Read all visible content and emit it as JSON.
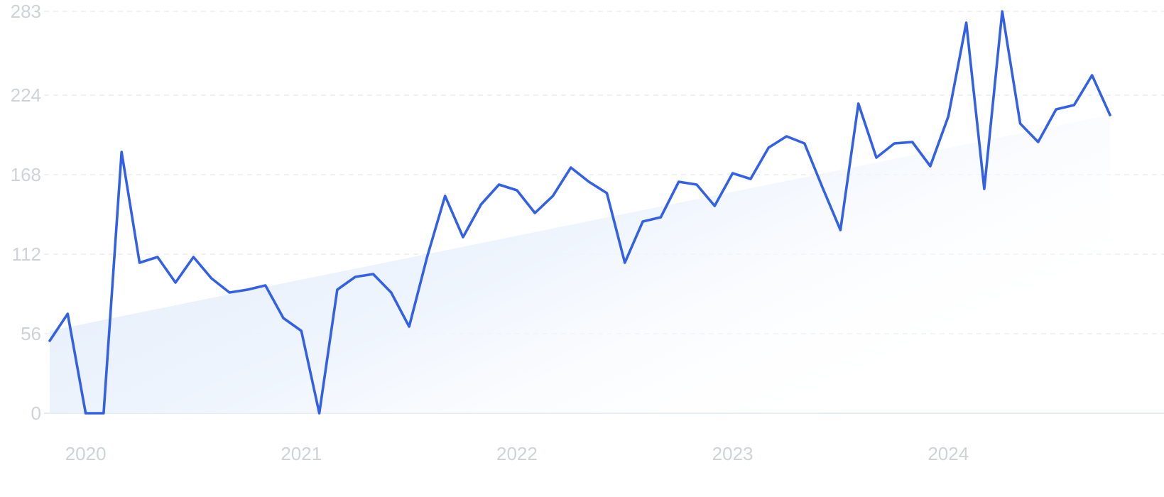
{
  "chart_data": {
    "type": "line",
    "title": "",
    "xlabel": "",
    "ylabel": "",
    "y_ticks": [
      "0",
      "56",
      "112",
      "168",
      "224",
      "283"
    ],
    "y_tick_values": [
      0,
      56,
      112,
      168,
      224,
      283
    ],
    "x_ticks": [
      "2020",
      "2021",
      "2022",
      "2023",
      "2024"
    ],
    "x_tick_values": [
      "2020-01",
      "2021-01",
      "2022-01",
      "2023-01",
      "2024-01"
    ],
    "ylim": [
      0,
      283
    ],
    "xlim": [
      "2019-11",
      "2024-10"
    ],
    "grid": "horizontal-dashed",
    "series": [
      {
        "x": [
          "2019-11",
          "2019-12",
          "2020-01",
          "2020-02",
          "2020-03",
          "2020-04",
          "2020-05",
          "2020-06",
          "2020-07",
          "2020-08",
          "2020-09",
          "2020-10",
          "2020-11",
          "2020-12",
          "2021-01",
          "2021-02",
          "2021-03",
          "2021-04",
          "2021-05",
          "2021-06",
          "2021-07",
          "2021-08",
          "2021-09",
          "2021-10",
          "2021-11",
          "2021-12",
          "2022-01",
          "2022-02",
          "2022-03",
          "2022-04",
          "2022-05",
          "2022-06",
          "2022-07",
          "2022-08",
          "2022-09",
          "2022-10",
          "2022-11",
          "2022-12",
          "2023-01",
          "2023-02",
          "2023-03",
          "2023-04",
          "2023-05",
          "2023-06",
          "2023-07",
          "2023-08",
          "2023-09",
          "2023-10",
          "2023-11",
          "2023-12",
          "2024-01",
          "2024-02",
          "2024-03",
          "2024-04",
          "2024-05",
          "2024-06",
          "2024-07",
          "2024-08",
          "2024-09",
          "2024-10"
        ],
        "values": [
          51,
          70,
          0,
          0,
          184,
          106,
          110,
          92,
          110,
          95,
          85,
          87,
          90,
          67,
          58,
          0,
          87,
          96,
          98,
          85,
          61,
          110,
          153,
          124,
          147,
          161,
          157,
          141,
          153,
          173,
          163,
          155,
          106,
          135,
          138,
          163,
          161,
          146,
          169,
          165,
          187,
          195,
          190,
          159,
          129,
          218,
          180,
          190,
          191,
          174,
          209,
          275,
          158,
          283,
          204,
          191,
          214,
          217,
          238,
          210
        ]
      }
    ],
    "trend": {
      "start": 58,
      "end": 210
    },
    "colors": {
      "line": "#3361e6",
      "grid": "#e3e6ea",
      "area": "#e3eefb",
      "ticks": "#cfd3d8"
    }
  }
}
